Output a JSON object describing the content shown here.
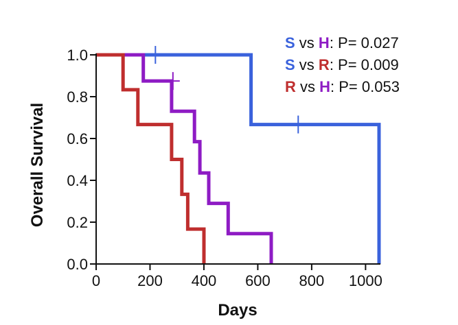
{
  "chart_data": {
    "type": "line",
    "subtype": "kaplan-meier-step",
    "xlabel": "Days",
    "ylabel": "Overall Survival",
    "xlim": [
      0,
      1050
    ],
    "ylim": [
      0,
      1.0
    ],
    "xticks": [
      0,
      200,
      400,
      600,
      800,
      1000
    ],
    "xtick_labels": [
      "0",
      "200",
      "400",
      "600",
      "800",
      "1000"
    ],
    "yticks": [
      0,
      0.2,
      0.4,
      0.6,
      0.8,
      1.0
    ],
    "ytick_labels": [
      "0.0",
      "0.2",
      "0.4",
      "0.6",
      "0.8",
      "1.0"
    ],
    "series": [
      {
        "name": "S",
        "color": "#3a62dc",
        "steps": [
          [
            0,
            1.0
          ],
          [
            575,
            1.0
          ],
          [
            575,
            0.667
          ],
          [
            1050,
            0.667
          ],
          [
            1050,
            0.0
          ]
        ],
        "censored": [
          [
            220,
            1.0
          ],
          [
            750,
            0.667
          ]
        ]
      },
      {
        "name": "H",
        "color": "#8e1bc4",
        "steps": [
          [
            0,
            1.0
          ],
          [
            90,
            1.0
          ],
          [
            90,
            1.0
          ],
          [
            175,
            1.0
          ],
          [
            175,
            0.875
          ],
          [
            280,
            0.875
          ],
          [
            280,
            0.73
          ],
          [
            365,
            0.73
          ],
          [
            365,
            0.585
          ],
          [
            385,
            0.585
          ],
          [
            385,
            0.435
          ],
          [
            418,
            0.435
          ],
          [
            418,
            0.29
          ],
          [
            490,
            0.29
          ],
          [
            490,
            0.145
          ],
          [
            650,
            0.145
          ],
          [
            650,
            0.0
          ]
        ],
        "censored": [
          [
            285,
            0.875
          ]
        ]
      },
      {
        "name": "R",
        "color": "#bf2e2e",
        "steps": [
          [
            0,
            1.0
          ],
          [
            100,
            1.0
          ],
          [
            100,
            0.833
          ],
          [
            155,
            0.833
          ],
          [
            155,
            0.667
          ],
          [
            280,
            0.667
          ],
          [
            280,
            0.5
          ],
          [
            318,
            0.5
          ],
          [
            318,
            0.333
          ],
          [
            340,
            0.333
          ],
          [
            340,
            0.167
          ],
          [
            400,
            0.167
          ],
          [
            400,
            0.0
          ]
        ],
        "censored": []
      }
    ],
    "annotations": [
      {
        "a": "S",
        "a_color": "#3a62dc",
        "mid": " vs ",
        "b": "H",
        "b_color": "#8e1bc4",
        "stat": ": P= 0.027"
      },
      {
        "a": "S",
        "a_color": "#3a62dc",
        "mid": " vs ",
        "b": "R",
        "b_color": "#bf2e2e",
        "stat": ": P= 0.009"
      },
      {
        "a": "R",
        "a_color": "#bf2e2e",
        "mid": " vs ",
        "b": "H",
        "b_color": "#8e1bc4",
        "stat": ": P= 0.053"
      }
    ]
  }
}
